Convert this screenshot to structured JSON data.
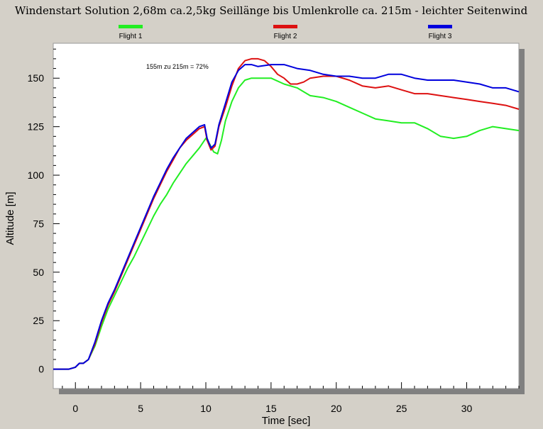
{
  "chart_data": {
    "type": "line",
    "title": "Windenstart Solution 2,68m ca.2,5kg Seillänge bis Umlenkrolle ca. 215m - leichter Seitenwind",
    "xlabel": "Time [sec]",
    "ylabel": "Altitude [m]",
    "xlim": [
      -1.7,
      34
    ],
    "ylim": [
      -10,
      168
    ],
    "xticks": [
      0,
      5,
      10,
      15,
      20,
      25,
      30
    ],
    "yticks": [
      0,
      25,
      50,
      75,
      100,
      125,
      150
    ],
    "grid": false,
    "legend_position": "top",
    "annotation": "155m zu 215m = 72%",
    "series": [
      {
        "name": "Flight 1",
        "color": "#22ee22",
        "x": [
          -1.7,
          -0.5,
          0,
          0.3,
          0.6,
          1,
          1.5,
          2,
          2.5,
          3,
          3.5,
          4,
          4.5,
          5,
          5.5,
          6,
          6.5,
          7,
          7.5,
          8,
          8.5,
          9,
          9.5,
          10,
          10.3,
          10.6,
          10.9,
          11.2,
          11.5,
          12,
          12.5,
          13,
          13.5,
          14,
          15,
          16,
          17,
          18,
          19,
          20,
          21,
          22,
          23,
          24,
          25,
          26,
          27,
          28,
          29,
          30,
          31,
          32,
          33,
          34
        ],
        "values": [
          0,
          0,
          1,
          3,
          3,
          5,
          12,
          22,
          31,
          38,
          45,
          52,
          58,
          65,
          72,
          79,
          85,
          90,
          96,
          101,
          106,
          110,
          114,
          119,
          116,
          112,
          111,
          118,
          128,
          138,
          145,
          149,
          150,
          150,
          150,
          147,
          145,
          141,
          140,
          138,
          135,
          132,
          129,
          128,
          127,
          127,
          124,
          120,
          119,
          120,
          123,
          125,
          124,
          123
        ]
      },
      {
        "name": "Flight 2",
        "color": "#dd1111",
        "x": [
          -1.7,
          -0.5,
          0,
          0.3,
          0.6,
          1,
          1.5,
          2,
          2.5,
          3,
          3.5,
          4,
          4.5,
          5,
          5.5,
          6,
          6.5,
          7,
          7.5,
          8,
          8.5,
          9,
          9.5,
          9.9,
          10.1,
          10.4,
          10.7,
          11,
          11.5,
          12,
          12.5,
          13,
          13.5,
          14,
          14.5,
          15,
          15.5,
          16,
          16.5,
          17,
          17.5,
          18,
          19,
          20,
          21,
          22,
          23,
          24,
          25,
          26,
          27,
          28,
          29,
          30,
          31,
          32,
          33,
          34
        ],
        "values": [
          0,
          0,
          1,
          3,
          3,
          5,
          13,
          24,
          33,
          40,
          48,
          56,
          64,
          72,
          80,
          88,
          95,
          102,
          108,
          114,
          118,
          121,
          124,
          125,
          118,
          113,
          115,
          125,
          135,
          146,
          155,
          159,
          160,
          160,
          159,
          156,
          152,
          150,
          147,
          147,
          148,
          150,
          151,
          151,
          149,
          146,
          145,
          146,
          144,
          142,
          142,
          141,
          140,
          139,
          138,
          137,
          136,
          134
        ]
      },
      {
        "name": "Flight 3",
        "color": "#0000dd",
        "x": [
          -1.7,
          -0.5,
          0,
          0.3,
          0.6,
          1,
          1.5,
          2,
          2.5,
          3,
          3.5,
          4,
          4.5,
          5,
          5.5,
          6,
          6.5,
          7,
          7.5,
          8,
          8.5,
          9,
          9.5,
          9.9,
          10.1,
          10.4,
          10.7,
          11,
          11.5,
          12,
          12.5,
          13,
          13.5,
          14,
          15,
          16,
          17,
          18,
          19,
          20,
          21,
          22,
          23,
          24,
          25,
          26,
          27,
          28,
          29,
          30,
          31,
          32,
          33,
          34
        ],
        "values": [
          0,
          0,
          1,
          3,
          3,
          5,
          14,
          25,
          34,
          41,
          49,
          57,
          65,
          73,
          81,
          89,
          96,
          103,
          109,
          114,
          119,
          122,
          125,
          126,
          119,
          114,
          116,
          126,
          137,
          148,
          154,
          157,
          157,
          156,
          157,
          157,
          155,
          154,
          152,
          151,
          151,
          150,
          150,
          152,
          152,
          150,
          149,
          149,
          149,
          148,
          147,
          145,
          145,
          143
        ]
      }
    ]
  }
}
